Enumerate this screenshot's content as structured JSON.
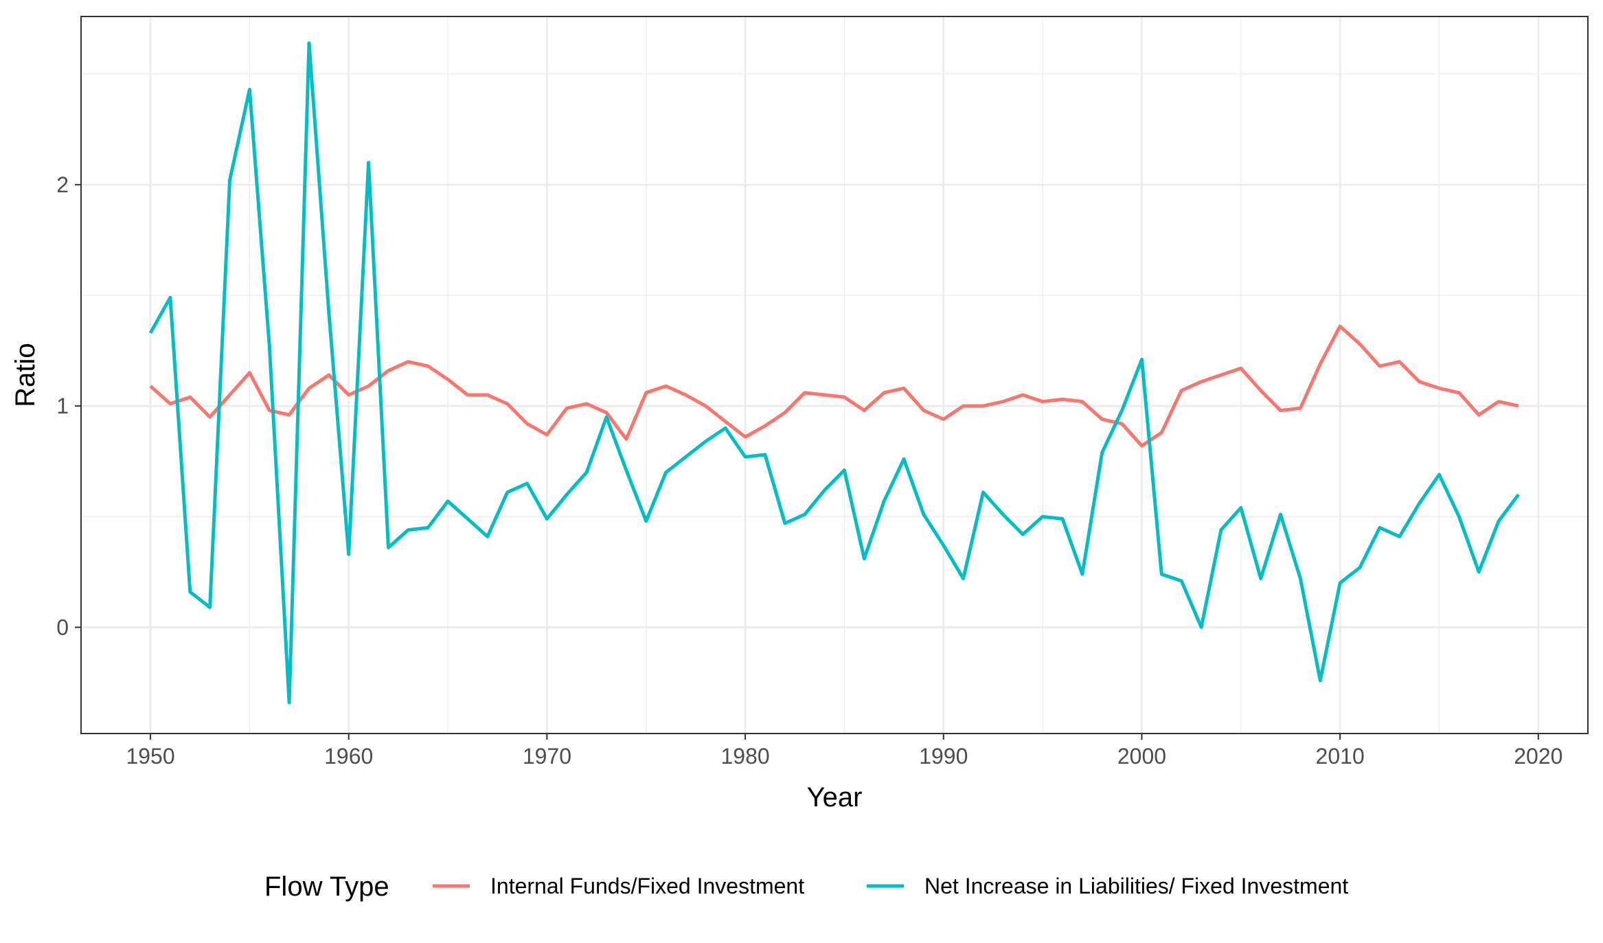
{
  "chart_data": {
    "type": "line",
    "xlabel": "Year",
    "ylabel": "Ratio",
    "xlim": [
      1946.5,
      2022.5
    ],
    "ylim": [
      -0.48,
      2.76
    ],
    "x_ticks": [
      1950,
      1960,
      1970,
      1980,
      1990,
      2000,
      2010,
      2020
    ],
    "y_ticks": [
      0,
      1,
      2
    ],
    "y_minor_ticks": [
      -0.5,
      0.5,
      1.5,
      2.5
    ],
    "grid": true,
    "legend": {
      "title": "Flow Type",
      "position": "bottom"
    },
    "x": [
      1950,
      1951,
      1952,
      1953,
      1954,
      1955,
      1956,
      1957,
      1958,
      1959,
      1960,
      1961,
      1962,
      1963,
      1964,
      1965,
      1966,
      1967,
      1968,
      1969,
      1970,
      1971,
      1972,
      1973,
      1974,
      1975,
      1976,
      1977,
      1978,
      1979,
      1980,
      1981,
      1982,
      1983,
      1984,
      1985,
      1986,
      1987,
      1988,
      1989,
      1990,
      1991,
      1992,
      1993,
      1994,
      1995,
      1996,
      1997,
      1998,
      1999,
      2000,
      2001,
      2002,
      2003,
      2004,
      2005,
      2006,
      2007,
      2008,
      2009,
      2010,
      2011,
      2012,
      2013,
      2014,
      2015,
      2016,
      2017,
      2018,
      2019
    ],
    "series": [
      {
        "name": "Internal Funds/Fixed Investment",
        "color": "#F8766D",
        "values": [
          1.09,
          1.01,
          1.04,
          0.95,
          1.05,
          1.15,
          0.98,
          0.96,
          1.08,
          1.14,
          1.05,
          1.09,
          1.16,
          1.2,
          1.18,
          1.12,
          1.05,
          1.05,
          1.01,
          0.92,
          0.87,
          0.99,
          1.01,
          0.97,
          0.85,
          1.06,
          1.09,
          1.05,
          1.0,
          0.93,
          0.86,
          0.91,
          0.97,
          1.06,
          1.05,
          1.04,
          0.98,
          1.06,
          1.08,
          0.98,
          0.94,
          1.0,
          1.0,
          1.02,
          1.05,
          1.02,
          1.03,
          1.02,
          0.94,
          0.92,
          0.82,
          0.88,
          1.07,
          1.11,
          1.14,
          1.17,
          1.07,
          0.98,
          0.99,
          1.19,
          1.36,
          1.28,
          1.18,
          1.2,
          1.11,
          1.08,
          1.06,
          0.96,
          1.02,
          1.0
        ]
      },
      {
        "name": "Net Increase in Liabilities/ Fixed Investment",
        "color": "#00BFC4",
        "values": [
          1.33,
          1.49,
          0.16,
          0.09,
          2.02,
          2.43,
          1.27,
          -0.34,
          2.64,
          1.42,
          0.33,
          2.1,
          0.36,
          0.44,
          0.45,
          0.57,
          0.49,
          0.41,
          0.61,
          0.65,
          0.49,
          0.6,
          0.7,
          0.95,
          0.71,
          0.48,
          0.7,
          0.77,
          0.84,
          0.9,
          0.77,
          0.78,
          0.47,
          0.51,
          0.62,
          0.71,
          0.31,
          0.57,
          0.76,
          0.51,
          0.37,
          0.22,
          0.61,
          0.51,
          0.42,
          0.5,
          0.49,
          0.24,
          0.79,
          0.98,
          1.21,
          0.24,
          0.21,
          0.0,
          0.44,
          0.54,
          0.22,
          0.51,
          0.22,
          -0.24,
          0.2,
          0.27,
          0.45,
          0.41,
          0.56,
          0.69,
          0.5,
          0.25,
          0.48,
          0.6
        ]
      }
    ]
  }
}
